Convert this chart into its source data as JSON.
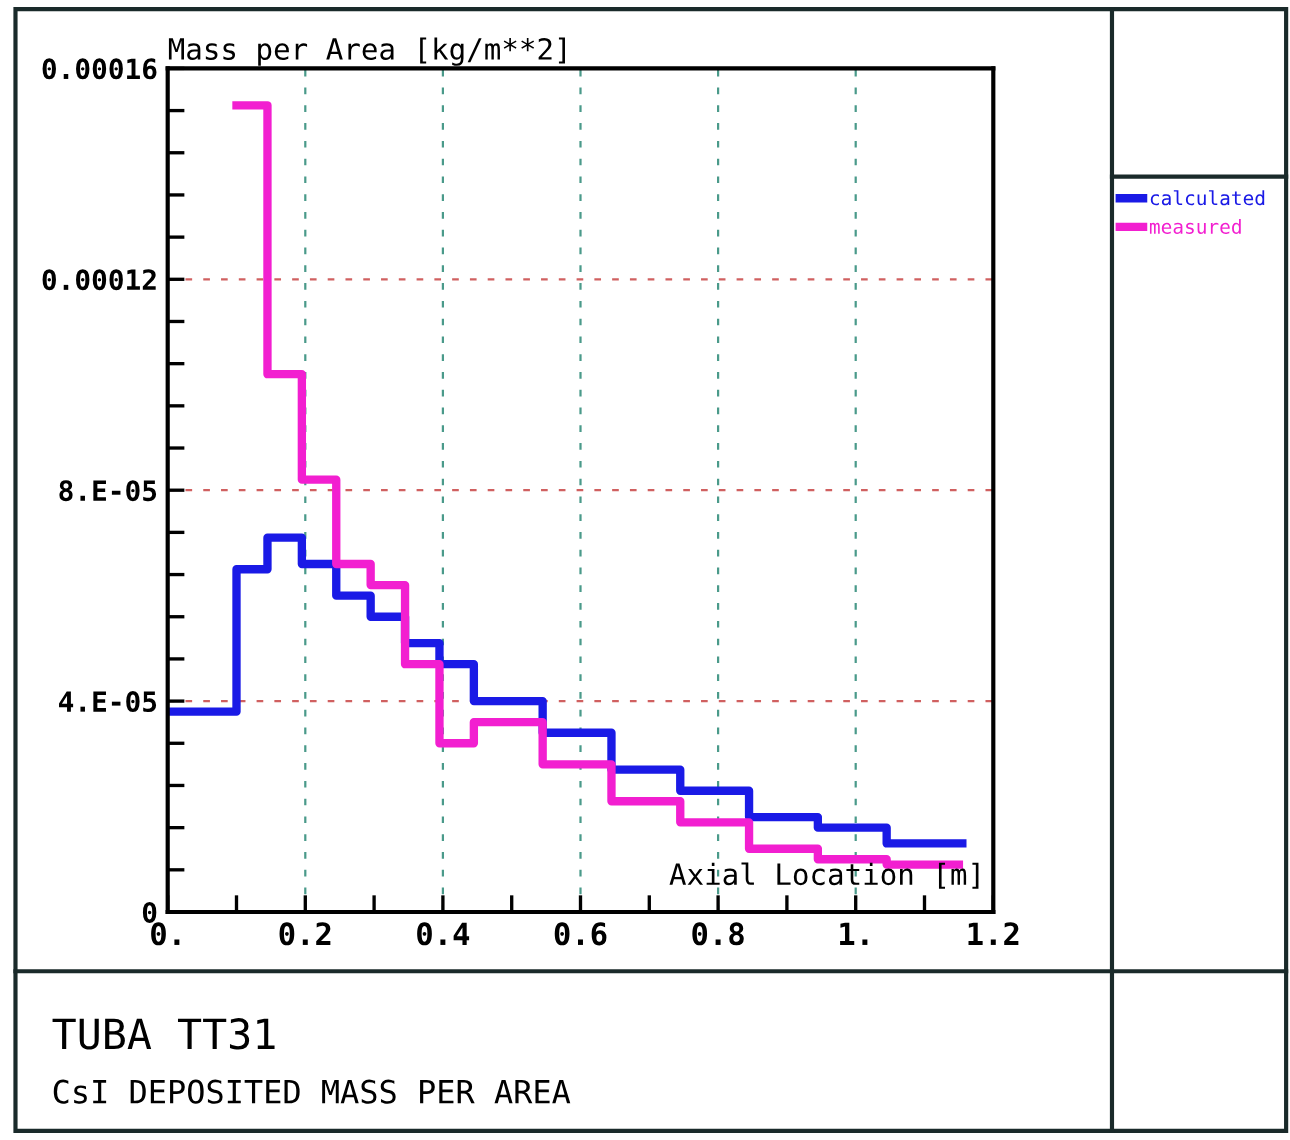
{
  "chart_data": {
    "type": "step",
    "title": "TUBA TT31",
    "subtitle": "CsI DEPOSITED MASS PER AREA",
    "xlabel": "Axial Location [m]",
    "ylabel": "Mass per Area [kg/m**2]",
    "xlim": [
      0,
      1.2
    ],
    "ylim": [
      0,
      0.00016
    ],
    "xticks": [
      {
        "value": 0,
        "label": "0."
      },
      0.2,
      0.4,
      0.6,
      0.8,
      {
        "value": 1,
        "label": "1."
      },
      1.2,
      {
        "value": 0.1,
        "label": null
      },
      {
        "value": 0.3,
        "label": null
      },
      {
        "value": 0.5,
        "label": null
      },
      {
        "value": 0.7,
        "label": null
      },
      {
        "value": 0.9,
        "label": null
      },
      {
        "value": 1.1,
        "label": null
      }
    ],
    "yticks": [
      0,
      {
        "value": 4e-05,
        "label": "4.E-05"
      },
      {
        "value": 8e-05,
        "label": "8.E-05"
      },
      0.00012,
      0.00016,
      {
        "value": 8e-06,
        "label": null
      },
      {
        "value": 1.6e-05,
        "label": null
      },
      {
        "value": 2.4e-05,
        "label": null
      },
      {
        "value": 3.2e-05,
        "label": null
      },
      {
        "value": 4.8e-05,
        "label": null
      },
      {
        "value": 5.6e-05,
        "label": null
      },
      {
        "value": 6.4e-05,
        "label": null
      },
      {
        "value": 7.2e-05,
        "label": null
      },
      {
        "value": 8.8e-05,
        "label": null
      },
      {
        "value": 9.6e-05,
        "label": null
      },
      {
        "value": 0.000104,
        "label": null
      },
      {
        "value": 0.000112,
        "label": null
      },
      {
        "value": 0.000128,
        "label": null
      },
      {
        "value": 0.000136,
        "label": null
      },
      {
        "value": 0.000144,
        "label": null
      },
      {
        "value": 0.000152,
        "label": null
      }
    ],
    "grid": true,
    "legend": "right",
    "line_style": "solid",
    "series": [
      {
        "name": "calculated",
        "color": "#1a1ae6",
        "x": [
          0,
          0.1,
          0.145,
          0.195,
          0.245,
          0.295,
          0.345,
          0.395,
          0.445,
          0.545,
          0.645,
          0.745,
          0.845,
          0.945,
          1.045,
          1.155
        ],
        "values": [
          3.8e-05,
          6.5e-05,
          7.1e-05,
          6.6e-05,
          6e-05,
          5.6e-05,
          5.1e-05,
          4.7e-05,
          4e-05,
          3.4e-05,
          2.7e-05,
          2.3e-05,
          1.8e-05,
          1.6e-05,
          1.3e-05,
          1.3e-05
        ]
      },
      {
        "name": "measured",
        "color": "#f21fd0",
        "x": [
          0.1,
          0.145,
          0.195,
          0.245,
          0.295,
          0.345,
          0.395,
          0.445,
          0.545,
          0.645,
          0.745,
          0.845,
          0.945,
          1.045,
          1.15
        ],
        "values": [
          0.000153,
          0.000102,
          8.2e-05,
          6.6e-05,
          6.2e-05,
          4.7e-05,
          3.2e-05,
          3.6e-05,
          2.8e-05,
          2.1e-05,
          1.7e-05,
          1.2e-05,
          1e-05,
          9e-06,
          9e-06
        ]
      }
    ]
  }
}
